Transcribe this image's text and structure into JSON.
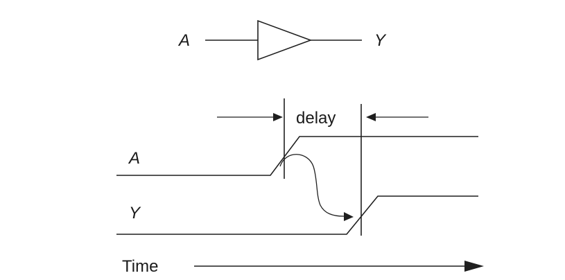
{
  "buffer": {
    "input_label": "A",
    "output_label": "Y"
  },
  "timing": {
    "delay_label": "delay",
    "signal_a_label": "A",
    "signal_y_label": "Y",
    "time_label": "Time"
  },
  "colors": {
    "ink": "#1f1f1f",
    "background": "#ffffff"
  }
}
